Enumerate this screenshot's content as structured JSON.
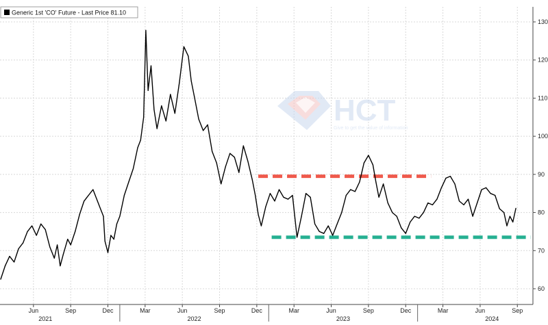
{
  "legend": {
    "label": "Generic 1st 'CO' Future - Last Price 81.10"
  },
  "watermark": {
    "brand": "HCT",
    "tagline": "Give to get the value of information"
  },
  "colors": {
    "line": "#000000",
    "resistance": "#ef5a4c",
    "support": "#26b092",
    "grid": "#d8d8d8",
    "watermark": "#c9d8ee"
  },
  "chart_data": {
    "type": "line",
    "ylim": [
      58,
      132
    ],
    "y_ticks": [
      60,
      70,
      80,
      90,
      100,
      110,
      120,
      130
    ],
    "x_month_ticks": [
      {
        "label": "Jun",
        "t": 2021.42
      },
      {
        "label": "Sep",
        "t": 2021.67
      },
      {
        "label": "Dec",
        "t": 2021.92
      },
      {
        "label": "Mar",
        "t": 2022.17
      },
      {
        "label": "Jun",
        "t": 2022.42
      },
      {
        "label": "Sep",
        "t": 2022.67
      },
      {
        "label": "Dec",
        "t": 2022.92
      },
      {
        "label": "Mar",
        "t": 2023.17
      },
      {
        "label": "Jun",
        "t": 2023.42
      },
      {
        "label": "Sep",
        "t": 2023.67
      },
      {
        "label": "Dec",
        "t": 2023.92
      },
      {
        "label": "Mar",
        "t": 2024.17
      },
      {
        "label": "Jun",
        "t": 2024.42
      },
      {
        "label": "Sep",
        "t": 2024.67
      }
    ],
    "x_year_labels": [
      {
        "label": "2021",
        "t": 2021.5
      },
      {
        "label": "2022",
        "t": 2022.5
      },
      {
        "label": "2023",
        "t": 2023.5
      },
      {
        "label": "2024",
        "t": 2024.5
      }
    ],
    "year_boundaries": [
      2022.0,
      2023.0,
      2024.0
    ],
    "x_range": [
      2021.2,
      2024.77
    ],
    "series": [
      {
        "name": "Generic 1st 'CO' Future",
        "points": [
          [
            2021.2,
            62.5
          ],
          [
            2021.23,
            66.0
          ],
          [
            2021.26,
            68.5
          ],
          [
            2021.29,
            67.0
          ],
          [
            2021.32,
            70.5
          ],
          [
            2021.35,
            72.0
          ],
          [
            2021.38,
            75.0
          ],
          [
            2021.41,
            76.5
          ],
          [
            2021.44,
            74.0
          ],
          [
            2021.47,
            77.0
          ],
          [
            2021.5,
            75.5
          ],
          [
            2021.53,
            71.0
          ],
          [
            2021.56,
            68.0
          ],
          [
            2021.58,
            71.5
          ],
          [
            2021.6,
            66.0
          ],
          [
            2021.62,
            69.0
          ],
          [
            2021.65,
            73.0
          ],
          [
            2021.67,
            71.5
          ],
          [
            2021.7,
            75.0
          ],
          [
            2021.73,
            79.5
          ],
          [
            2021.76,
            83.0
          ],
          [
            2021.79,
            84.5
          ],
          [
            2021.82,
            86.0
          ],
          [
            2021.85,
            83.0
          ],
          [
            2021.87,
            81.0
          ],
          [
            2021.89,
            79.0
          ],
          [
            2021.9,
            72.5
          ],
          [
            2021.92,
            69.5
          ],
          [
            2021.94,
            74.0
          ],
          [
            2021.96,
            73.0
          ],
          [
            2021.98,
            77.0
          ],
          [
            2022.0,
            79.0
          ],
          [
            2022.03,
            84.5
          ],
          [
            2022.06,
            88.0
          ],
          [
            2022.09,
            91.5
          ],
          [
            2022.12,
            97.0
          ],
          [
            2022.14,
            99.0
          ],
          [
            2022.16,
            105.0
          ],
          [
            2022.175,
            127.8
          ],
          [
            2022.19,
            112.0
          ],
          [
            2022.21,
            118.5
          ],
          [
            2022.23,
            107.0
          ],
          [
            2022.25,
            102.0
          ],
          [
            2022.28,
            108.0
          ],
          [
            2022.31,
            104.0
          ],
          [
            2022.34,
            111.0
          ],
          [
            2022.37,
            106.0
          ],
          [
            2022.4,
            114.0
          ],
          [
            2022.43,
            123.5
          ],
          [
            2022.46,
            121.0
          ],
          [
            2022.48,
            114.5
          ],
          [
            2022.5,
            110.5
          ],
          [
            2022.53,
            104.5
          ],
          [
            2022.56,
            101.5
          ],
          [
            2022.59,
            103.0
          ],
          [
            2022.62,
            96.0
          ],
          [
            2022.65,
            93.0
          ],
          [
            2022.68,
            87.5
          ],
          [
            2022.71,
            92.0
          ],
          [
            2022.74,
            95.5
          ],
          [
            2022.77,
            94.5
          ],
          [
            2022.8,
            90.5
          ],
          [
            2022.83,
            97.5
          ],
          [
            2022.86,
            93.5
          ],
          [
            2022.89,
            88.5
          ],
          [
            2022.91,
            84.5
          ],
          [
            2022.93,
            79.5
          ],
          [
            2022.95,
            76.5
          ],
          [
            2022.98,
            81.5
          ],
          [
            2023.01,
            85.0
          ],
          [
            2023.04,
            83.0
          ],
          [
            2023.07,
            86.0
          ],
          [
            2023.1,
            84.0
          ],
          [
            2023.13,
            83.5
          ],
          [
            2023.16,
            84.5
          ],
          [
            2023.19,
            73.5
          ],
          [
            2023.22,
            79.0
          ],
          [
            2023.25,
            85.0
          ],
          [
            2023.28,
            84.0
          ],
          [
            2023.31,
            77.0
          ],
          [
            2023.34,
            75.0
          ],
          [
            2023.37,
            74.5
          ],
          [
            2023.4,
            76.5
          ],
          [
            2023.43,
            74.0
          ],
          [
            2023.46,
            77.0
          ],
          [
            2023.49,
            80.0
          ],
          [
            2023.52,
            84.5
          ],
          [
            2023.55,
            86.0
          ],
          [
            2023.58,
            85.5
          ],
          [
            2023.61,
            88.0
          ],
          [
            2023.64,
            93.0
          ],
          [
            2023.67,
            95.0
          ],
          [
            2023.7,
            92.5
          ],
          [
            2023.72,
            88.0
          ],
          [
            2023.74,
            84.0
          ],
          [
            2023.77,
            87.5
          ],
          [
            2023.8,
            82.5
          ],
          [
            2023.83,
            80.0
          ],
          [
            2023.86,
            79.0
          ],
          [
            2023.89,
            76.0
          ],
          [
            2023.92,
            74.5
          ],
          [
            2023.95,
            77.5
          ],
          [
            2023.98,
            79.0
          ],
          [
            2024.01,
            78.5
          ],
          [
            2024.04,
            80.0
          ],
          [
            2024.07,
            82.5
          ],
          [
            2024.1,
            82.0
          ],
          [
            2024.13,
            83.5
          ],
          [
            2024.16,
            86.5
          ],
          [
            2024.19,
            89.0
          ],
          [
            2024.22,
            89.5
          ],
          [
            2024.25,
            87.5
          ],
          [
            2024.28,
            83.0
          ],
          [
            2024.31,
            82.0
          ],
          [
            2024.34,
            83.5
          ],
          [
            2024.37,
            79.0
          ],
          [
            2024.4,
            82.5
          ],
          [
            2024.43,
            86.0
          ],
          [
            2024.46,
            86.5
          ],
          [
            2024.49,
            85.0
          ],
          [
            2024.52,
            84.5
          ],
          [
            2024.55,
            81.0
          ],
          [
            2024.58,
            80.0
          ],
          [
            2024.6,
            76.5
          ],
          [
            2024.62,
            79.0
          ],
          [
            2024.64,
            77.5
          ],
          [
            2024.66,
            81.1
          ]
        ]
      }
    ],
    "annotations": [
      {
        "name": "resistance-line",
        "type": "dashed",
        "y": 89.5,
        "x_start": 2022.93,
        "x_end": 2024.09,
        "color": "#ef5a4c"
      },
      {
        "name": "support-line",
        "type": "dashed",
        "y": 73.5,
        "x_start": 2023.02,
        "x_end": 2024.76,
        "color": "#26b092"
      }
    ],
    "grid": true,
    "y_axis_side": "right",
    "legend_position": "top-left"
  }
}
